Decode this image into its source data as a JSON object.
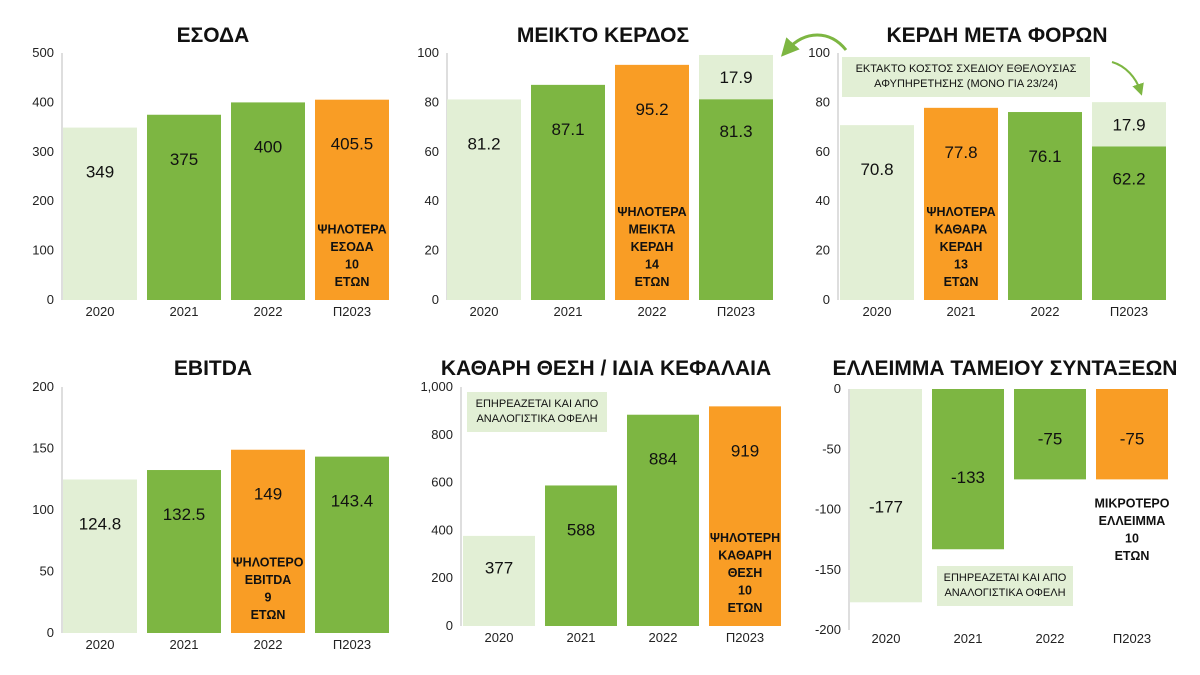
{
  "colors": {
    "light": "#e2efd5",
    "green": "#7db642",
    "orange": "#f99d25",
    "axis": "#bdbdbd"
  },
  "chart_data": [
    {
      "type": "bar",
      "title": "ΕΣΟΔΑ",
      "categories": [
        "2020",
        "2021",
        "2022",
        "Π2023"
      ],
      "values": [
        349,
        375,
        400,
        405.5
      ],
      "value_labels": [
        "349",
        "375",
        "400",
        "405.5"
      ],
      "bar_colors": [
        "light",
        "green",
        "green",
        "orange"
      ],
      "ylim": [
        0,
        500
      ],
      "yticks": [
        "0",
        "100",
        "200",
        "300",
        "400",
        "500"
      ],
      "annotation": {
        "bar": 3,
        "lines": [
          "ΨΗΛΟΤΕΡΑ",
          "ΕΣΟΔΑ",
          "10",
          "ΕΤΩΝ"
        ]
      }
    },
    {
      "type": "bar",
      "title": "ΜΕΙΚΤΟ ΚΕΡΔΟΣ",
      "categories": [
        "2020",
        "2021",
        "2022",
        "Π2023"
      ],
      "values": [
        81.2,
        87.1,
        95.2,
        81.3
      ],
      "value_labels": [
        "81.2",
        "87.1",
        "95.2",
        "81.3"
      ],
      "bar_colors": [
        "light",
        "green",
        "orange",
        "green"
      ],
      "ylim": [
        0,
        100
      ],
      "yticks": [
        "0",
        "20",
        "40",
        "60",
        "80",
        "100"
      ],
      "stacked_extra": {
        "bar": 3,
        "value": 17.9,
        "label": "17.9",
        "color": "light"
      },
      "annotation": {
        "bar": 2,
        "lines": [
          "ΨΗΛΟΤΕΡΑ",
          "ΜΕΙΚΤΑ",
          "ΚΕΡΔΗ",
          "14",
          "ΕΤΩΝ"
        ]
      }
    },
    {
      "type": "bar",
      "title": "ΚΕΡΔΗ ΜΕΤΑ ΦΟΡΩΝ",
      "categories": [
        "2020",
        "2021",
        "2022",
        "Π2023"
      ],
      "values": [
        70.8,
        77.8,
        76.1,
        62.2
      ],
      "value_labels": [
        "70.8",
        "77.8",
        "76.1",
        "62.2"
      ],
      "bar_colors": [
        "light",
        "orange",
        "green",
        "green"
      ],
      "ylim": [
        0,
        100
      ],
      "yticks": [
        "0",
        "20",
        "40",
        "60",
        "80",
        "100"
      ],
      "stacked_extra": {
        "bar": 3,
        "value": 17.9,
        "label": "17.9",
        "color": "light"
      },
      "annotation": {
        "bar": 1,
        "lines": [
          "ΨΗΛΟΤΕΡΑ",
          "ΚΑΘΑΡΑ",
          "ΚΕΡΔΗ",
          "13",
          "ΕΤΩΝ"
        ]
      },
      "note": {
        "lines": [
          "ΕΚΤΑΚΤΟ ΚΟΣΤΟΣ ΣΧΕΔΙΟΥ ΕΘΕΛΟΥΣΙΑΣ",
          "ΑΦΥΠΗΡΕΤΗΣΗΣ (ΜΟΝΟ ΓΙΑ 23/24)"
        ]
      }
    },
    {
      "type": "bar",
      "title": "EBITDA",
      "categories": [
        "2020",
        "2021",
        "2022",
        "Π2023"
      ],
      "values": [
        124.8,
        132.5,
        149,
        143.4
      ],
      "value_labels": [
        "124.8",
        "132.5",
        "149",
        "143.4"
      ],
      "bar_colors": [
        "light",
        "green",
        "orange",
        "green"
      ],
      "ylim": [
        0,
        200
      ],
      "yticks": [
        "0",
        "50",
        "100",
        "150",
        "200"
      ],
      "annotation": {
        "bar": 2,
        "lines": [
          "ΨΗΛΟΤΕΡΟ",
          "EBITDA",
          "9",
          "ΕΤΩΝ"
        ]
      }
    },
    {
      "type": "bar",
      "title": "ΚΑΘΑΡΗ ΘΕΣΗ / ΙΔΙΑ ΚΕΦΑΛΑΙΑ",
      "categories": [
        "2020",
        "2021",
        "2022",
        "Π2023"
      ],
      "values": [
        377,
        588,
        884,
        919
      ],
      "value_labels": [
        "377",
        "588",
        "884",
        "919"
      ],
      "bar_colors": [
        "light",
        "green",
        "green",
        "orange"
      ],
      "ylim": [
        0,
        1000
      ],
      "yticks": [
        "0",
        "200",
        "400",
        "600",
        "800",
        "1,000"
      ],
      "annotation": {
        "bar": 3,
        "lines": [
          "ΨΗΛΟΤΕΡΗ",
          "ΚΑΘΑΡΗ",
          "ΘΕΣΗ",
          "10",
          "ΕΤΩΝ"
        ]
      },
      "note": {
        "lines": [
          "ΕΠΗΡΕΑΖΕΤΑΙ ΚΑΙ ΑΠΟ",
          "ΑΝΑΛΟΓΙΣΤΙΚΑ ΟΦΕΛΗ"
        ]
      }
    },
    {
      "type": "bar",
      "title": "ΕΛΛΕΙΜΜΑ ΤΑΜΕΙΟΥ ΣΥΝΤΑΞΕΩΝ",
      "categories": [
        "2020",
        "2021",
        "2022",
        "Π2023"
      ],
      "values": [
        -177,
        -133,
        -75,
        -75
      ],
      "value_labels": [
        "-177",
        "-133",
        "-75",
        "-75"
      ],
      "bar_colors": [
        "light",
        "green",
        "green",
        "orange"
      ],
      "ylim": [
        -200,
        0
      ],
      "yticks": [
        "-200",
        "-150",
        "-100",
        "-50",
        "0"
      ],
      "annotation": {
        "bar": 3,
        "lines": [
          "ΜΙΚΡΟΤΕΡΟ",
          "ΕΛΛΕΙΜΜΑ",
          "10",
          "ΕΤΩΝ"
        ]
      },
      "note": {
        "lines": [
          "ΕΠΗΡΕΑΖΕΤΑΙ ΚΑΙ ΑΠΟ",
          "ΑΝΑΛΟΓΙΣΤΙΚΑ ΟΦΕΛΗ"
        ]
      }
    }
  ]
}
